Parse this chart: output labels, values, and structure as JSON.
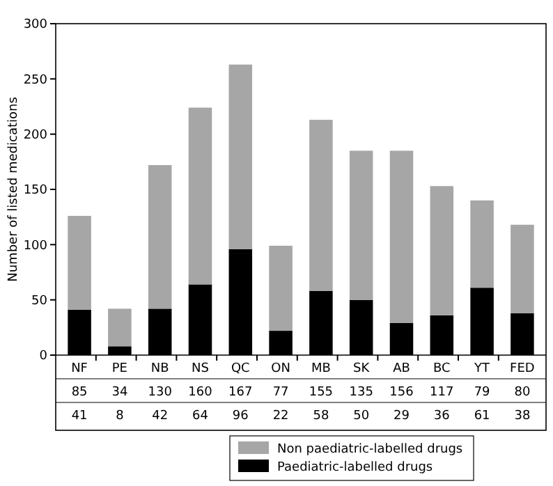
{
  "chart_data": {
    "type": "bar",
    "stacked": true,
    "ylabel": "Number of listed medications",
    "categories": [
      "NF",
      "PE",
      "NB",
      "NS",
      "QC",
      "ON",
      "MB",
      "SK",
      "AB",
      "BC",
      "YT",
      "FED"
    ],
    "series": [
      {
        "name": "Paediatric-labelled drugs",
        "color": "#000000",
        "values": [
          41,
          8,
          42,
          64,
          96,
          22,
          58,
          50,
          29,
          36,
          61,
          38
        ]
      },
      {
        "name": "Non paediatric-labelled drugs",
        "color": "#a6a6a6",
        "values": [
          85,
          34,
          130,
          160,
          167,
          77,
          155,
          135,
          156,
          117,
          79,
          80
        ]
      }
    ],
    "ylim": [
      0,
      300
    ],
    "yticks": [
      0,
      50,
      100,
      150,
      200,
      250,
      300
    ],
    "data_labels": true,
    "legend": "bottom",
    "grid": false
  }
}
